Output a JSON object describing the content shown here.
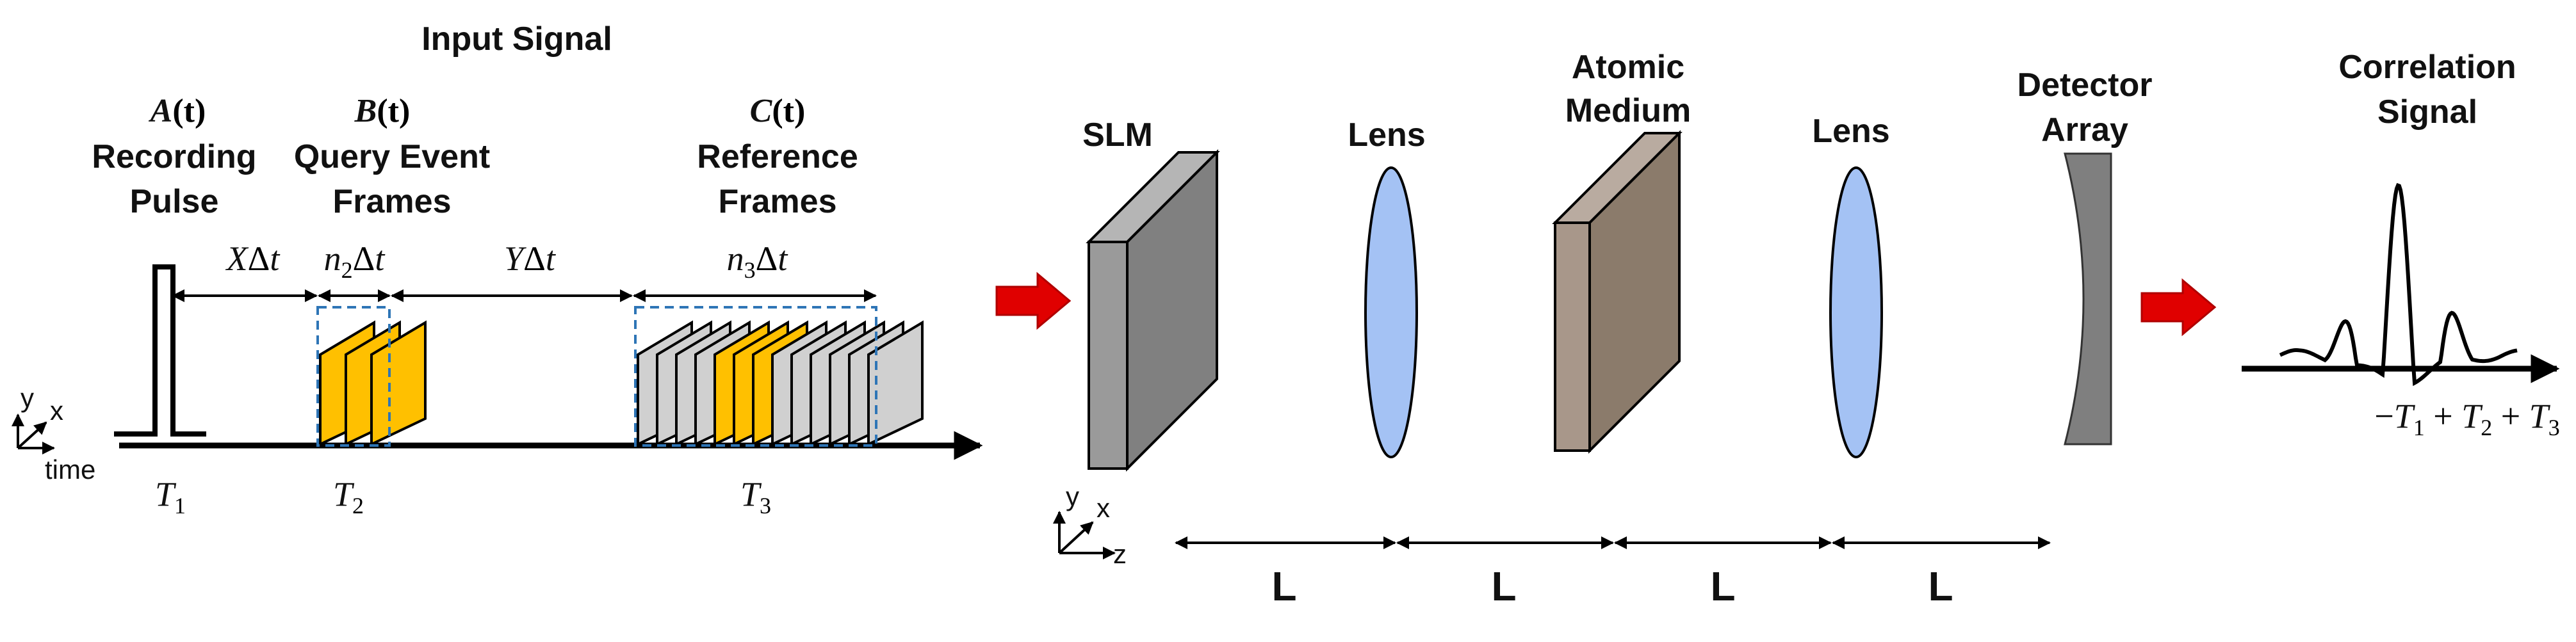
{
  "input_signal": {
    "title": "Input Signal",
    "pulse_a": {
      "symbol": "A",
      "arg": "(t)",
      "line1": "Recording",
      "line2": "Pulse"
    },
    "pulse_b": {
      "symbol": "B",
      "arg": "(t)",
      "line1": "Query Event",
      "line2": "Frames"
    },
    "pulse_c": {
      "symbol": "C",
      "arg": "(t)",
      "line1": "Reference",
      "line2": "Frames"
    },
    "intervals": {
      "x_delay": {
        "var": "X",
        "delta": "Δ",
        "t": "t"
      },
      "n2": {
        "var": "n",
        "sub": "2",
        "delta": "Δ",
        "t": "t"
      },
      "y_delay": {
        "var": "Y",
        "delta": "Δ",
        "t": "t"
      },
      "n3": {
        "var": "n",
        "sub": "3",
        "delta": "Δ",
        "t": "t"
      }
    },
    "times": [
      {
        "var": "T",
        "sub": "1"
      },
      {
        "var": "T",
        "sub": "2"
      },
      {
        "var": "T",
        "sub": "3"
      }
    ],
    "axes": {
      "y": "y",
      "x": "x",
      "time": "time"
    }
  },
  "setup": {
    "slm": "SLM",
    "lens1": "Lens",
    "atomic_line1": "Atomic",
    "atomic_line2": "Medium",
    "lens2": "Lens",
    "detector_line1": "Detector",
    "detector_line2": "Array",
    "axes": {
      "y": "y",
      "x": "x",
      "z": "z"
    },
    "distances": [
      "L",
      "L",
      "L",
      "L"
    ]
  },
  "output": {
    "title_line1": "Correlation",
    "title_line2": "Signal",
    "axis_label": {
      "minus": "−",
      "t1": "T",
      "s1": "1",
      "plus1": " + ",
      "t2": "T",
      "s2": "2",
      "plus2": " + ",
      "t3": "T",
      "s3": "3"
    }
  },
  "colors": {
    "query_frame": "#FFC000",
    "reference_frame": "#D0D0D0",
    "slm": "#808080",
    "atomic": "#8B7B6B",
    "lens": "#A4C2F4",
    "detector": "#7F7F7F",
    "arrow": "#E00000",
    "dashed_box": "#2E75B6"
  }
}
